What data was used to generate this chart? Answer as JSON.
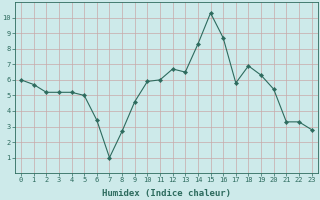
{
  "x": [
    0,
    1,
    2,
    3,
    4,
    5,
    6,
    7,
    8,
    9,
    10,
    11,
    12,
    13,
    14,
    15,
    16,
    17,
    18,
    19,
    20,
    21,
    22,
    23
  ],
  "y": [
    6.0,
    5.7,
    5.2,
    5.2,
    5.2,
    5.0,
    3.4,
    1.0,
    2.7,
    4.6,
    5.9,
    6.0,
    6.7,
    6.5,
    8.3,
    10.3,
    8.7,
    5.8,
    6.9,
    6.3,
    5.4,
    3.3,
    3.3,
    2.8
  ],
  "line_color": "#2d6b5e",
  "marker": "D",
  "marker_size": 2.2,
  "bg_color": "#cdeaea",
  "grid_color": "#c8a8a8",
  "xlabel": "Humidex (Indice chaleur)",
  "xlim": [
    -0.5,
    23.5
  ],
  "ylim": [
    0,
    11
  ],
  "yticks": [
    1,
    2,
    3,
    4,
    5,
    6,
    7,
    8,
    9,
    10
  ],
  "xticks": [
    0,
    1,
    2,
    3,
    4,
    5,
    6,
    7,
    8,
    9,
    10,
    11,
    12,
    13,
    14,
    15,
    16,
    17,
    18,
    19,
    20,
    21,
    22,
    23
  ],
  "tick_label_size": 5.0,
  "xlabel_size": 6.5,
  "axis_color": "#2d6b5e",
  "linewidth": 0.8
}
